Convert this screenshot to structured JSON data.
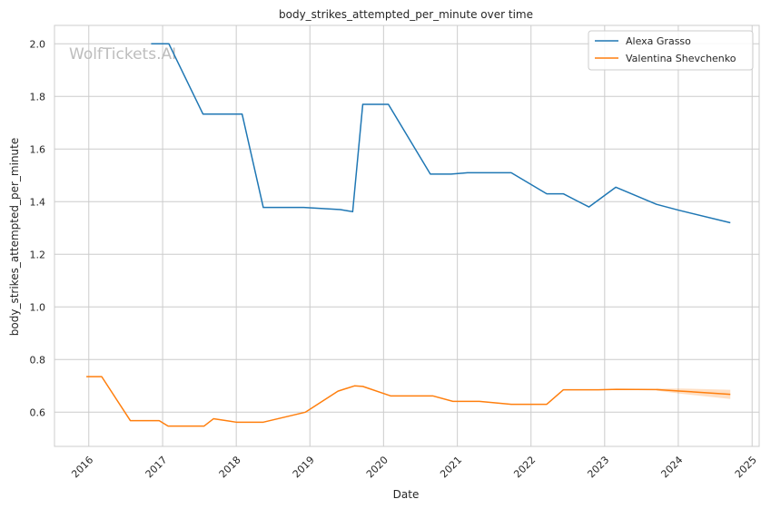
{
  "watermark": "WolfTickets.AI",
  "chart_data": {
    "type": "line",
    "title": "body_strikes_attempted_per_minute over time",
    "xlabel": "Date",
    "ylabel": "body_strikes_attempted_per_minute",
    "x_type": "date",
    "xlim": [
      "2015-07-15",
      "2025-02-05"
    ],
    "ylim": [
      0.47,
      2.07
    ],
    "x_ticks": [
      "2016",
      "2017",
      "2018",
      "2019",
      "2020",
      "2021",
      "2022",
      "2023",
      "2024",
      "2025"
    ],
    "y_ticks": [
      "0.6",
      "0.8",
      "1.0",
      "1.2",
      "1.4",
      "1.6",
      "1.8",
      "2.0"
    ],
    "grid": true,
    "legend_position": "top-right",
    "colors": {
      "Alexa Grasso": "#1f77b4",
      "Valentina Shevchenko": "#ff7f0e"
    },
    "series": [
      {
        "name": "Alexa Grasso",
        "points": [
          [
            "2016-11-05",
            2.0
          ],
          [
            "2017-02-01",
            2.0
          ],
          [
            "2017-07-20",
            1.733
          ],
          [
            "2018-01-30",
            1.733
          ],
          [
            "2018-05-15",
            1.378
          ],
          [
            "2018-12-01",
            1.378
          ],
          [
            "2019-06-01",
            1.37
          ],
          [
            "2019-08-01",
            1.362
          ],
          [
            "2019-09-20",
            1.77
          ],
          [
            "2020-01-25",
            1.77
          ],
          [
            "2020-08-20",
            1.505
          ],
          [
            "2020-12-01",
            1.505
          ],
          [
            "2021-02-20",
            1.51
          ],
          [
            "2021-09-25",
            1.51
          ],
          [
            "2022-03-20",
            1.43
          ],
          [
            "2022-06-10",
            1.43
          ],
          [
            "2022-10-15",
            1.38
          ],
          [
            "2023-02-25",
            1.455
          ],
          [
            "2023-09-15",
            1.39
          ],
          [
            "2024-01-01",
            1.368
          ],
          [
            "2024-09-15",
            1.32
          ]
        ]
      },
      {
        "name": "Valentina Shevchenko",
        "points": [
          [
            "2015-12-20",
            0.735
          ],
          [
            "2016-03-05",
            0.735
          ],
          [
            "2016-07-25",
            0.568
          ],
          [
            "2016-12-15",
            0.568
          ],
          [
            "2017-01-28",
            0.547
          ],
          [
            "2017-07-25",
            0.547
          ],
          [
            "2017-09-10",
            0.575
          ],
          [
            "2018-01-01",
            0.562
          ],
          [
            "2018-05-15",
            0.562
          ],
          [
            "2018-12-10",
            0.6
          ],
          [
            "2019-05-20",
            0.68
          ],
          [
            "2019-08-10",
            0.7
          ],
          [
            "2019-09-20",
            0.698
          ],
          [
            "2020-02-05",
            0.662
          ],
          [
            "2020-09-01",
            0.662
          ],
          [
            "2020-12-10",
            0.641
          ],
          [
            "2021-04-20",
            0.641
          ],
          [
            "2021-09-25",
            0.63
          ],
          [
            "2022-03-20",
            0.63
          ],
          [
            "2022-06-10",
            0.685
          ],
          [
            "2022-12-01",
            0.685
          ],
          [
            "2023-03-01",
            0.687
          ],
          [
            "2023-09-15",
            0.686
          ],
          [
            "2024-01-15",
            0.68
          ],
          [
            "2024-09-15",
            0.668
          ]
        ],
        "band": [
          [
            "2023-09-15",
            0.682,
            0.69
          ],
          [
            "2024-01-15",
            0.67,
            0.69
          ],
          [
            "2024-09-15",
            0.65,
            0.685
          ]
        ]
      }
    ]
  }
}
